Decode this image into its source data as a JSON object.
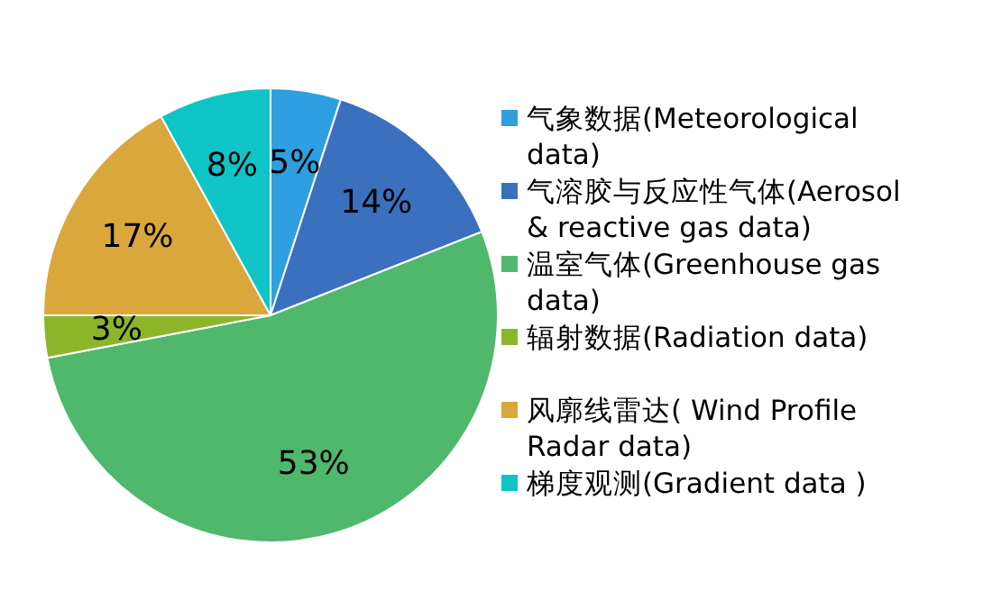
{
  "chart_data": {
    "type": "pie",
    "categories": [
      "气象数据(Meteorological data)",
      "气溶胶与反应性气体(Aerosol & reactive gas data)",
      "温室气体(Greenhouse gas data)",
      "辐射数据(Radiation data)",
      "风廓线雷达( Wind Profile Radar data)",
      "梯度观测(Gradient data )"
    ],
    "values": [
      5,
      14,
      53,
      3,
      17,
      8
    ],
    "colors": [
      "#2e9fe0",
      "#3a70bd",
      "#50b86c",
      "#8db52a",
      "#d9a73c",
      "#0fc4c6"
    ],
    "value_labels": [
      "5%",
      "14%",
      "53%",
      "3%",
      "17%",
      "8%"
    ],
    "legend": "right"
  }
}
